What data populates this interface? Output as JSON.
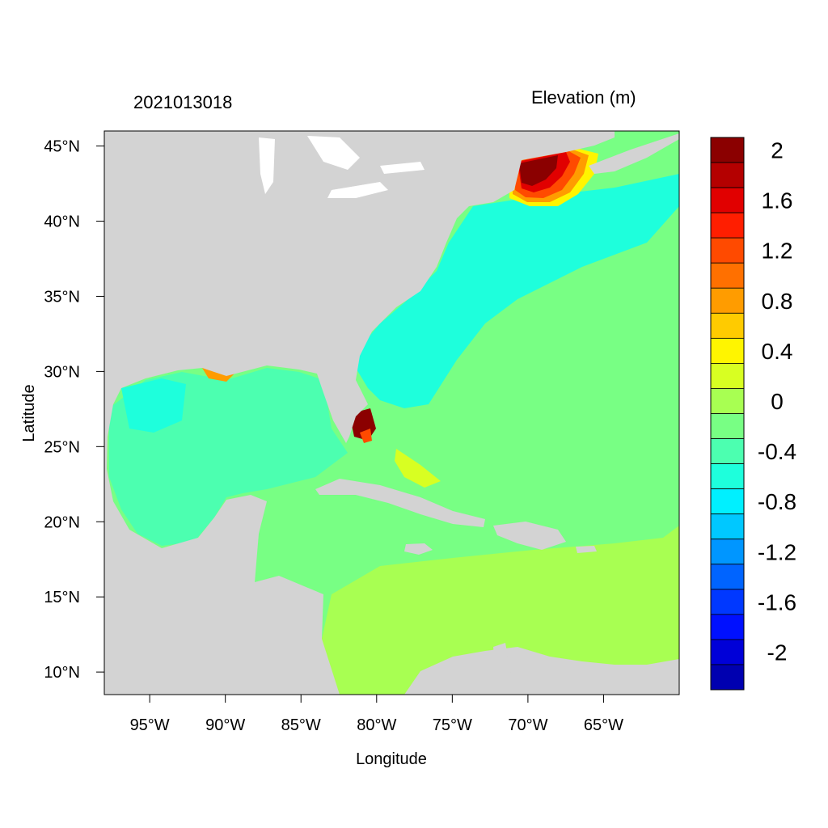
{
  "figure": {
    "date_stamp": "2021013018",
    "colorbar_title": "Elevation (m)",
    "xlabel": "Longitude",
    "ylabel": "Latitude"
  },
  "map": {
    "lon_range": [
      -98,
      -60
    ],
    "lat_range": [
      8.5,
      46
    ],
    "lon_ticks": [
      "95°W",
      "90°W",
      "85°W",
      "80°W",
      "75°W",
      "70°W",
      "65°W"
    ],
    "lat_ticks": [
      "45°N",
      "40°N",
      "35°N",
      "30°N",
      "25°N",
      "20°N",
      "15°N",
      "10°N"
    ],
    "land_color": "#d3d3d3",
    "levels": [
      {
        "label": "2",
        "color": "#8b0000"
      },
      {
        "label": "",
        "color": "#b40000"
      },
      {
        "label": "1.6",
        "color": "#e10000"
      },
      {
        "label": "",
        "color": "#ff1e00"
      },
      {
        "label": "1.2",
        "color": "#ff4a00"
      },
      {
        "label": "",
        "color": "#ff7000"
      },
      {
        "label": "0.8",
        "color": "#ff9c00"
      },
      {
        "label": "",
        "color": "#ffcb00"
      },
      {
        "label": "0.4",
        "color": "#fff500"
      },
      {
        "label": "",
        "color": "#d8ff22"
      },
      {
        "label": "0",
        "color": "#a8ff52"
      },
      {
        "label": "",
        "color": "#78ff84"
      },
      {
        "label": "-0.4",
        "color": "#4cffb0"
      },
      {
        "label": "",
        "color": "#1effdc"
      },
      {
        "label": "-0.8",
        "color": "#00f0ff"
      },
      {
        "label": "",
        "color": "#00c8ff"
      },
      {
        "label": "-1.2",
        "color": "#0096ff"
      },
      {
        "label": "",
        "color": "#0064ff"
      },
      {
        "label": "-1.6",
        "color": "#0038ff"
      },
      {
        "label": "",
        "color": "#0010ff"
      },
      {
        "label": "-2",
        "color": "#0000d8"
      },
      {
        "label": "",
        "color": "#0000b0"
      }
    ]
  }
}
